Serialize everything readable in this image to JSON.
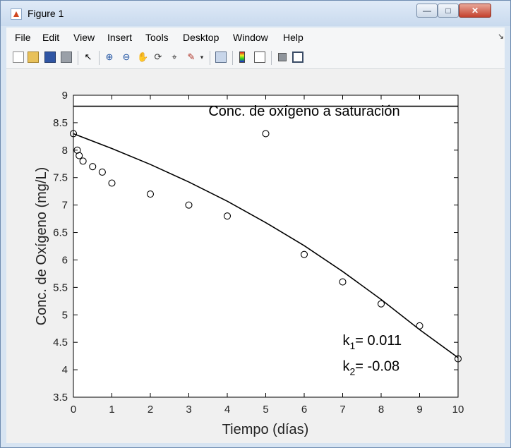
{
  "window": {
    "title": "Figure 1"
  },
  "menu": [
    "File",
    "Edit",
    "View",
    "Insert",
    "Tools",
    "Desktop",
    "Window",
    "Help"
  ],
  "toolbar_icons": [
    "new-figure-icon",
    "open-file-icon",
    "save-icon",
    "print-icon",
    "pointer-icon",
    "zoom-in-icon",
    "zoom-out-icon",
    "pan-icon",
    "rotate-3d-icon",
    "data-cursor-icon",
    "brush-icon",
    "brush-dropdown-icon",
    "link-plot-icon",
    "colorbar-icon",
    "legend-icon",
    "hide-plot-tools-icon",
    "show-plot-tools-icon"
  ],
  "chart_data": {
    "type": "scatter",
    "xlabel": "Tiempo (días)",
    "ylabel": "Conc. de Oxígeno (mg/L)",
    "xlim": [
      0,
      10
    ],
    "ylim": [
      3.5,
      9
    ],
    "xticks": [
      "0",
      "1",
      "2",
      "3",
      "4",
      "5",
      "6",
      "7",
      "8",
      "9",
      "10"
    ],
    "yticks": [
      "3.5",
      "4",
      "4.5",
      "5",
      "5.5",
      "6",
      "6.5",
      "7",
      "7.5",
      "8",
      "8.5",
      "9"
    ],
    "grid": false,
    "series": [
      {
        "kind": "markers",
        "x": [
          0,
          0.1,
          0.15,
          0.25,
          0.5,
          0.75,
          1,
          2,
          3,
          4,
          5,
          6,
          7,
          8,
          9,
          10
        ],
        "y": [
          8.3,
          8.0,
          7.9,
          7.8,
          7.7,
          7.6,
          7.4,
          7.2,
          7.0,
          6.8,
          8.3,
          6.1,
          5.6,
          5.2,
          4.8,
          4.2
        ]
      },
      {
        "kind": "line",
        "x": [
          0,
          1,
          2,
          3,
          4,
          5,
          6,
          7,
          8,
          9,
          10
        ],
        "y": [
          8.3,
          8.03,
          7.74,
          7.42,
          7.07,
          6.68,
          6.26,
          5.79,
          5.28,
          4.73,
          4.22
        ]
      },
      {
        "kind": "line",
        "x": [
          0,
          10
        ],
        "y": [
          8.8,
          8.8
        ]
      }
    ],
    "annotations": [
      {
        "text": "Conc. de oxígeno a saturación",
        "x": 6,
        "y": 8.63
      },
      {
        "text_main": "k",
        "sub": "1",
        "text_after": "= 0.011",
        "x": 7,
        "y": 4.45
      },
      {
        "text_main": "k",
        "sub": "2",
        "text_after": "= -0.08",
        "x": 7,
        "y": 3.98
      }
    ]
  }
}
